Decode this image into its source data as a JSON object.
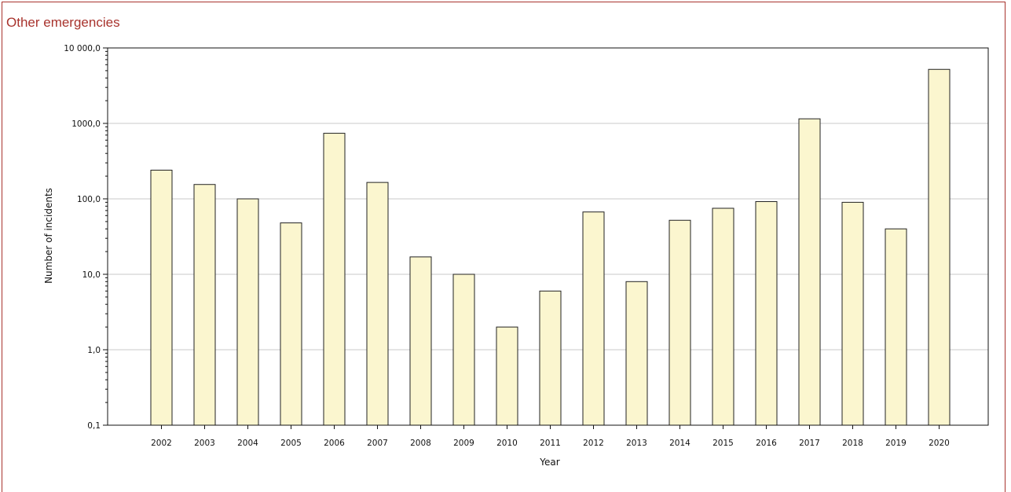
{
  "chart_data": {
    "type": "bar",
    "title": "Other emergencies",
    "xlabel": "Year",
    "ylabel": "Number of incidents",
    "yscale": "log",
    "ylim": [
      0.1,
      10000
    ],
    "yticks": [
      0.1,
      1,
      10,
      100,
      1000,
      10000
    ],
    "ytick_labels": [
      "0,1",
      "1,0",
      "10,0",
      "100,0",
      "1000,0",
      "10 000,0"
    ],
    "categories": [
      "2002",
      "2003",
      "2004",
      "2005",
      "2006",
      "2007",
      "2008",
      "2009",
      "2010",
      "2011",
      "2012",
      "2013",
      "2014",
      "2015",
      "2016",
      "2017",
      "2018",
      "2019",
      "2020"
    ],
    "values": [
      240,
      155,
      100,
      48,
      740,
      165,
      17,
      10,
      2,
      6,
      67,
      8,
      52,
      75,
      92,
      1150,
      90,
      40,
      5200
    ],
    "grid": true,
    "colors": {
      "bar_fill": "#fbf6cf",
      "bar_stroke": "#222222",
      "title": "#a8332d",
      "grid": "#c8c8c8"
    }
  }
}
